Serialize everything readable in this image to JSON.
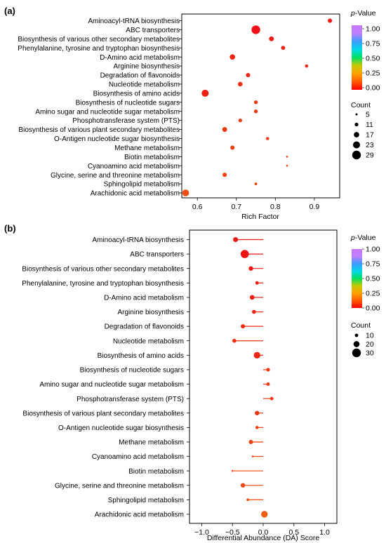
{
  "legend_title_prefix": "p",
  "legend_title_suffix": "-Value",
  "colorbar_ticks": [
    "1.00",
    "0.75",
    "0.50",
    "0.25",
    "0.00"
  ],
  "colorbar_colors": [
    "#ff0000",
    "#ff5a00",
    "#ffa000",
    "#c8c800",
    "#00e060",
    "#00d8e8",
    "#3a9cff",
    "#c080ff",
    "#c878ff"
  ],
  "point_color": "#ef3b1b",
  "chart_data": [
    {
      "panel_label": "(a)",
      "type": "scatter",
      "xlabel": "Rich Factor",
      "xlim": [
        0.56,
        0.965
      ],
      "xticks": [
        "0.6",
        "0.7",
        "0.8",
        "0.9"
      ],
      "xtick_values": [
        0.6,
        0.7,
        0.8,
        0.9
      ],
      "categories": [
        "Aminoacyl-tRNA biosynthesis",
        "ABC transporters",
        "Biosynthesis of various other secondary metabolites",
        "Phenylalanine, tyrosine and tryptophan biosynthesis",
        "D-Amino acid metabolism",
        "Arginine biosynthesis",
        "Degradation of flavonoids",
        "Nucleotide metabolism",
        "Biosynthesis of amino acids",
        "Biosynthesis of nucleotide sugars",
        "Amino sugar and nucleotide sugar metabolism",
        "Phosphotransferase system (PTS)",
        "Biosynthesis of various plant secondary metabolites",
        "O-Antigen nucleotide sugar biosynthesis",
        "Methane metabolism",
        "Biotin metabolism",
        "Cyanoamino acid metabolism",
        "Glycine, serine and threonine metabolism",
        "Sphingolipid metabolism",
        "Arachidonic acid metabolism"
      ],
      "x": [
        0.94,
        0.75,
        0.79,
        0.82,
        0.69,
        0.88,
        0.73,
        0.71,
        0.62,
        0.75,
        0.75,
        0.71,
        0.67,
        0.78,
        0.69,
        0.83,
        0.83,
        0.67,
        0.75,
        0.57
      ],
      "count": [
        13,
        29,
        15,
        12,
        17,
        9,
        13,
        14,
        23,
        11,
        11,
        11,
        15,
        9,
        13,
        4,
        4,
        13,
        7,
        22
      ],
      "pvalue": [
        0.03,
        0.0,
        0.03,
        0.05,
        0.05,
        0.05,
        0.06,
        0.08,
        0.04,
        0.1,
        0.1,
        0.12,
        0.1,
        0.12,
        0.12,
        0.12,
        0.12,
        0.13,
        0.13,
        0.16
      ],
      "size_legend": {
        "title": "Count",
        "values": [
          "5",
          "11",
          "17",
          "23",
          "29"
        ]
      }
    },
    {
      "panel_label": "(b)",
      "type": "scatter",
      "xlabel": "Differential Abundance (DA) Score",
      "xlim": [
        -1.2,
        1.2
      ],
      "xticks": [
        "−1.0",
        "−0.5",
        "0.0",
        "0.5",
        "1.0"
      ],
      "xtick_values": [
        -1.0,
        -0.5,
        0.0,
        0.5,
        1.0
      ],
      "categories": [
        "Aminoacyl-tRNA biosynthesis",
        "ABC transporters",
        "Biosynthesis of various other secondary metabolites",
        "Phenylalanine, tyrosine and tryptophan biosynthesis",
        "D-Amino acid metabolism",
        "Arginine biosynthesis",
        "Degradation of flavonoids",
        "Nucleotide metabolism",
        "Biosynthesis of amino acids",
        "Biosynthesis of nucleotide sugars",
        "Amino sugar and nucleotide sugar metabolism",
        "Phosphotransferase system (PTS)",
        "Biosynthesis of various plant secondary metabolites",
        "O-Antigen nucleotide sugar biosynthesis",
        "Methane metabolism",
        "Cyanoamino acid metabolism",
        "Biotin metabolism",
        "Glycine, serine and threonine metabolism",
        "Sphingolipid metabolism",
        "Arachidonic acid metabolism"
      ],
      "x": [
        -0.45,
        -0.3,
        -0.2,
        -0.1,
        -0.18,
        -0.15,
        -0.33,
        -0.47,
        -0.1,
        0.08,
        0.08,
        0.14,
        -0.1,
        -0.1,
        -0.2,
        -0.17,
        -0.5,
        -0.33,
        -0.25,
        0.02
      ],
      "line_end": [
        0.0,
        0.0,
        0.0,
        0.0,
        0.0,
        0.0,
        0.0,
        0.0,
        0.0,
        0.0,
        0.0,
        0.0,
        0.0,
        0.0,
        0.0,
        0.0,
        0.0,
        0.0,
        0.0,
        0.0
      ],
      "count": [
        16,
        28,
        14,
        10,
        15,
        12,
        13,
        12,
        22,
        11,
        10,
        10,
        14,
        9,
        13,
        4,
        4,
        14,
        7,
        22
      ],
      "pvalue": [
        0.02,
        0.01,
        0.02,
        0.03,
        0.04,
        0.05,
        0.06,
        0.08,
        0.06,
        0.1,
        0.1,
        0.1,
        0.1,
        0.12,
        0.12,
        0.14,
        0.14,
        0.14,
        0.15,
        0.2
      ],
      "size_legend": {
        "title": "Count",
        "values": [
          "10",
          "20",
          "30"
        ]
      }
    }
  ]
}
